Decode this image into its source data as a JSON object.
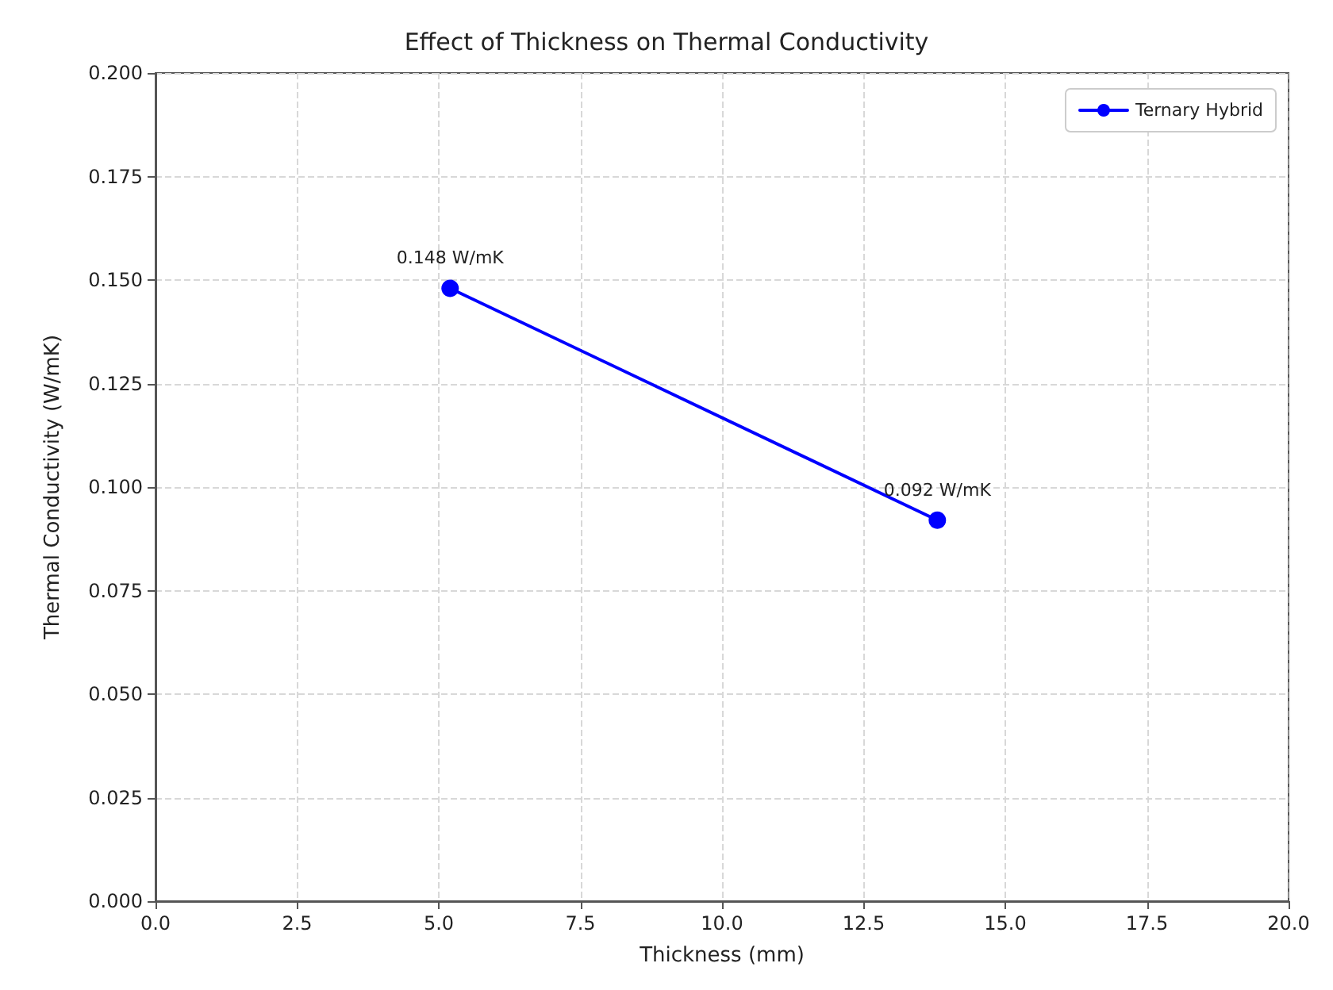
{
  "chart_data": {
    "type": "line",
    "title": "Effect of Thickness on Thermal Conductivity",
    "xlabel": "Thickness (mm)",
    "ylabel": "Thermal Conductivity (W/mK)",
    "x": [
      5.2,
      13.8
    ],
    "series": [
      {
        "name": "Ternary Hybrid",
        "color": "#0000ff",
        "values": [
          0.148,
          0.092
        ],
        "value_labels": [
          "0.148 W/mK",
          "0.092 W/mK"
        ]
      }
    ],
    "xlim": [
      0,
      20
    ],
    "xticks": [
      {
        "value": 0,
        "label": "0.0"
      },
      2.5,
      {
        "value": 5,
        "label": "5.0"
      },
      7.5,
      {
        "value": 10,
        "label": "10.0"
      },
      12.5,
      {
        "value": 15,
        "label": "15.0"
      },
      17.5,
      {
        "value": 20,
        "label": "20.0"
      }
    ],
    "ylim": [
      0,
      0.2
    ],
    "yticks": [
      {
        "value": 0,
        "label": "0.000"
      },
      0.025,
      {
        "value": 0.05,
        "label": "0.050"
      },
      0.075,
      {
        "value": 0.1,
        "label": "0.100"
      },
      0.125,
      {
        "value": 0.15,
        "label": "0.150"
      },
      0.175,
      {
        "value": 0.2,
        "label": "0.200"
      }
    ],
    "grid": true,
    "legend": "top right",
    "marker": "circle",
    "line_style": "solid"
  }
}
